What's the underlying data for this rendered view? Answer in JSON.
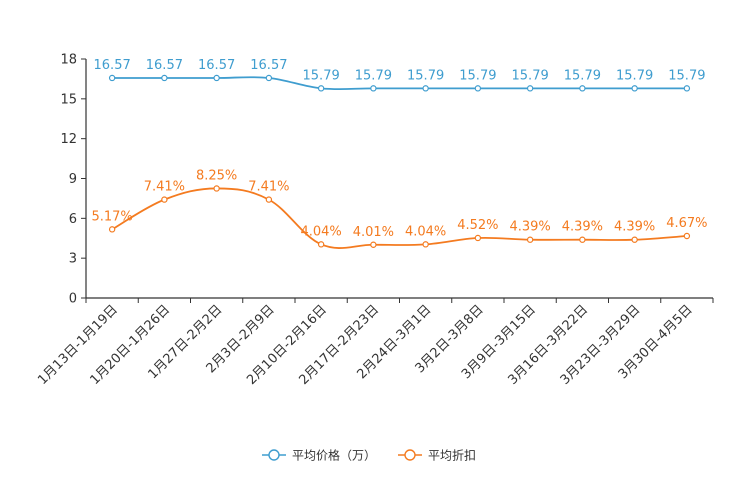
{
  "chart_data": {
    "type": "line",
    "title": "",
    "xlabel": "",
    "ylabel": "",
    "ylim": [
      0,
      18
    ],
    "yticks": [
      0,
      3,
      6,
      9,
      12,
      15,
      18
    ],
    "grid": false,
    "legend_position": "bottom-center",
    "categories": [
      "1月13日-1月19日",
      "1月20日-1月26日",
      "1月27日-2月2日",
      "2月3日-2月9日",
      "2月10日-2月16日",
      "2月17日-2月23日",
      "2月24日-3月1日",
      "3月2日-3月8日",
      "3月9日-3月15日",
      "3月16日-3月22日",
      "3月23日-3月29日",
      "3月30日-4月5日"
    ],
    "series": [
      {
        "name": "平均价格（万）",
        "color": "#3f9dcf",
        "values": [
          16.57,
          16.57,
          16.57,
          16.57,
          15.79,
          15.79,
          15.79,
          15.79,
          15.79,
          15.79,
          15.79,
          15.79
        ],
        "labels": [
          "16.57",
          "16.57",
          "16.57",
          "16.57",
          "15.79",
          "15.79",
          "15.79",
          "15.79",
          "15.79",
          "15.79",
          "15.79",
          "15.79"
        ]
      },
      {
        "name": "平均折扣",
        "color": "#f47b20",
        "values": [
          5.17,
          7.41,
          8.25,
          7.41,
          4.04,
          4.01,
          4.04,
          4.52,
          4.39,
          4.39,
          4.39,
          4.67
        ],
        "labels": [
          "5.17%",
          "7.41%",
          "8.25%",
          "7.41%",
          "4.04%",
          "4.01%",
          "4.04%",
          "4.52%",
          "4.39%",
          "4.39%",
          "4.39%",
          "4.67%"
        ]
      }
    ]
  }
}
